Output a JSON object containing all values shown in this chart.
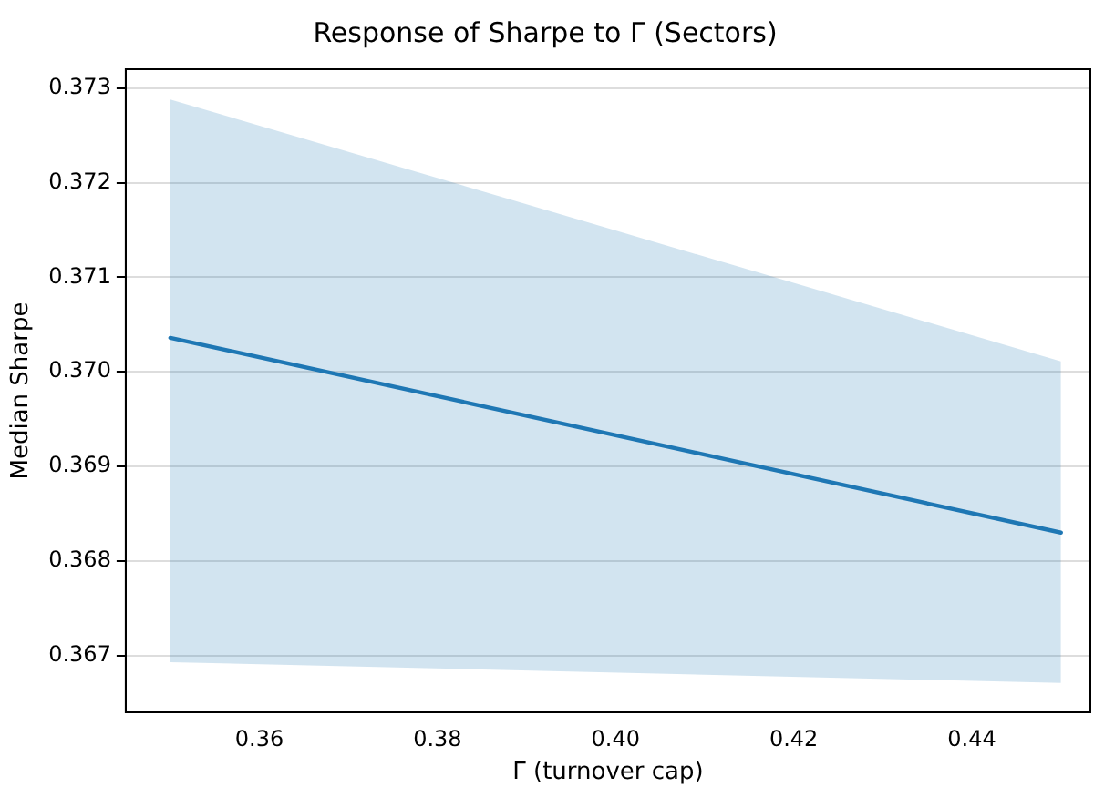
{
  "chart_data": {
    "type": "line",
    "title": "Response of Sharpe to Γ (Sectors)",
    "xlabel": "Γ (turnover cap)",
    "ylabel": "Median Sharpe",
    "x": [
      0.35,
      0.45
    ],
    "series": [
      {
        "color": "#1f77b4",
        "values": [
          0.37036,
          0.3683
        ],
        "lower": [
          0.36693,
          0.36671
        ],
        "upper": [
          0.37288,
          0.37011
        ]
      }
    ],
    "xlim": [
      0.345,
      0.4533
    ],
    "ylim": [
      0.3664,
      0.3732
    ],
    "xticks": [
      {
        "value": 0.36,
        "label": "0.36"
      },
      {
        "value": 0.38,
        "label": "0.38"
      },
      {
        "value": 0.4,
        "label": "0.40"
      },
      {
        "value": 0.42,
        "label": "0.42"
      },
      {
        "value": 0.44,
        "label": "0.44"
      }
    ],
    "yticks": [
      0.367,
      0.368,
      0.369,
      {
        "value": 0.37,
        "label": "0.370"
      },
      0.371,
      0.372,
      0.373
    ],
    "grid": "y",
    "legend": false,
    "marker": "none",
    "line_style": "solid"
  }
}
